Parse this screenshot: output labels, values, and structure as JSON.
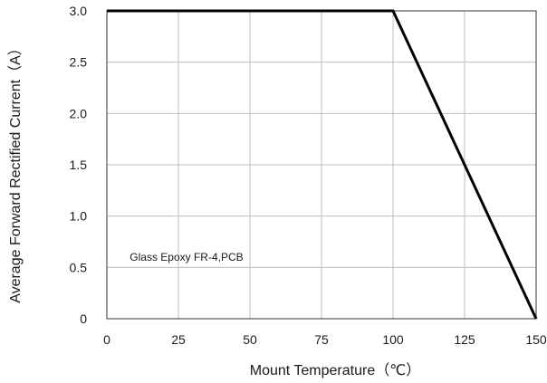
{
  "chart_data": {
    "type": "line",
    "title": "",
    "xlabel": "Mount Temperature（℃）",
    "ylabel": "Average Forward Rectified Current（A）",
    "xlim": [
      0,
      150
    ],
    "ylim": [
      0,
      3.0
    ],
    "x_ticks": [
      0,
      25,
      50,
      75,
      100,
      125,
      150
    ],
    "x_tick_labels": [
      "0",
      "25",
      "50",
      "75",
      "100",
      "125",
      "150"
    ],
    "y_ticks": [
      0,
      0.5,
      1.0,
      1.5,
      2.0,
      2.5,
      3.0
    ],
    "y_tick_labels": [
      "0",
      "0.5",
      "1.0",
      "1.5",
      "2.0",
      "2.5",
      "3.0"
    ],
    "grid": true,
    "series": [
      {
        "x": [
          0,
          100,
          150
        ],
        "y": [
          3.0,
          3.0,
          0
        ],
        "color": "#000000"
      }
    ],
    "annotations": [
      {
        "text": "Glass Epoxy FR-4,PCB",
        "x": 8,
        "y": 0.6
      }
    ]
  }
}
